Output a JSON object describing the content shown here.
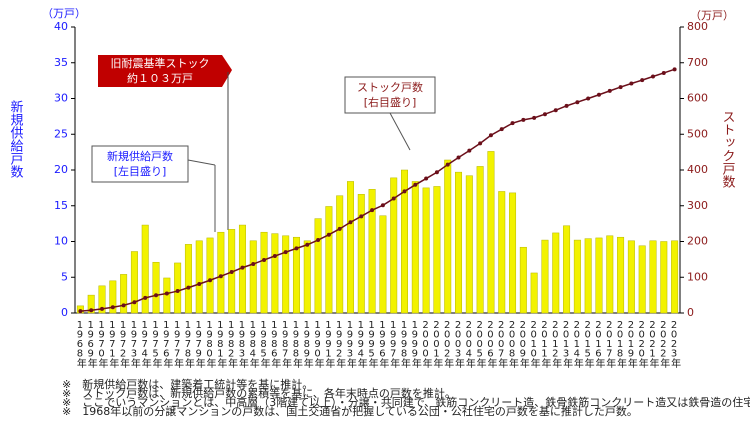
{
  "chart_data": {
    "type": "bar_line",
    "y_label": "新規供給戸数",
    "y_unit": "（万戸）",
    "y2_label": "ストック戸数",
    "y2_unit": "（万戸）",
    "categories": [
      "1968年",
      "1969年",
      "1970年",
      "1971年",
      "1972年",
      "1973年",
      "1974年",
      "1975年",
      "1976年",
      "1977年",
      "1978年",
      "1979年",
      "1980年",
      "1981年",
      "1982年",
      "1983年",
      "1984年",
      "1985年",
      "1986年",
      "1987年",
      "1988年",
      "1989年",
      "1990年",
      "1991年",
      "1992年",
      "1993年",
      "1994年",
      "1995年",
      "1996年",
      "1997年",
      "1998年",
      "1999年",
      "2000年",
      "2001年",
      "2002年",
      "2003年",
      "2004年",
      "2005年",
      "2006年",
      "2007年",
      "2008年",
      "2009年",
      "2010年",
      "2011年",
      "2012年",
      "2013年",
      "2014年",
      "2015年",
      "2016年",
      "2017年",
      "2018年",
      "2019年",
      "2020年",
      "2021年",
      "2022年",
      "2023年"
    ],
    "series": [
      {
        "name": "新規供給戸数",
        "color": "#f2f200",
        "values": [
          1.0,
          2.5,
          3.8,
          4.5,
          5.4,
          8.6,
          12.3,
          7.1,
          4.9,
          7.0,
          9.6,
          10.1,
          10.5,
          11.3,
          11.7,
          12.3,
          10.1,
          11.3,
          11.1,
          10.8,
          10.6,
          10.1,
          13.2,
          14.9,
          16.4,
          18.4,
          16.6,
          17.3,
          13.6,
          18.9,
          20.0,
          18.4,
          17.5,
          17.7,
          21.4,
          19.7,
          19.2,
          20.5,
          22.6,
          17.0,
          16.8,
          9.2,
          5.6,
          10.2,
          11.2,
          12.2,
          10.2,
          10.4,
          10.5,
          10.8,
          10.6,
          10.1,
          9.4,
          10.1,
          10.0,
          10.1
        ]
      },
      {
        "name": "ストック戸数",
        "color": "#6b0f1a",
        "axis": "y2",
        "values": [
          5.3,
          7.8,
          11.6,
          16.1,
          21.5,
          30.1,
          42.4,
          49.5,
          54.4,
          61.4,
          71.0,
          81.1,
          91.6,
          102.9,
          114.6,
          126.9,
          137.0,
          148.3,
          159.4,
          170.2,
          180.8,
          190.9,
          204.1,
          219.0,
          235.4,
          253.8,
          270.4,
          287.7,
          301.3,
          320.2,
          340.2,
          358.6,
          376.1,
          393.8,
          415.2,
          434.9,
          454.1,
          474.6,
          497.2,
          514.2,
          531.0,
          540.2,
          545.8,
          556.0,
          567.2,
          579.4,
          589.6,
          600.0,
          610.5,
          621.3,
          631.9,
          642.0,
          651.4,
          661.5,
          671.5,
          681.6
        ]
      }
    ],
    "ylim": [
      0,
      40
    ],
    "yticks": [
      0,
      5,
      10,
      15,
      20,
      25,
      30,
      35,
      40
    ],
    "y2lim": [
      0,
      800
    ],
    "y2ticks": [
      0,
      100,
      200,
      300,
      400,
      500,
      600,
      700,
      800
    ],
    "annotations": [
      "旧耐震基準ストック",
      "約１０３万戸",
      "[左目盛り]",
      "[右目盛り]"
    ],
    "notes": [
      "※　新規供給戸数は、建築着工統計等を基に推計。",
      "※　ストック戸数は、新規供給戸数の累積等を基に、各年末時点の戸数を推計。",
      "※　ここでいうマンションとは、中高層（3階建て以上）・分譲・共同建で、鉄筋コンクリート造、鉄骨鉄筋コンクリート造又は鉄骨造の住宅をいう。",
      "※　1968年以前の分譲マンションの戸数は、国土交通省が把握している公団・公社住宅の戸数を基に推計した戸数。"
    ]
  }
}
